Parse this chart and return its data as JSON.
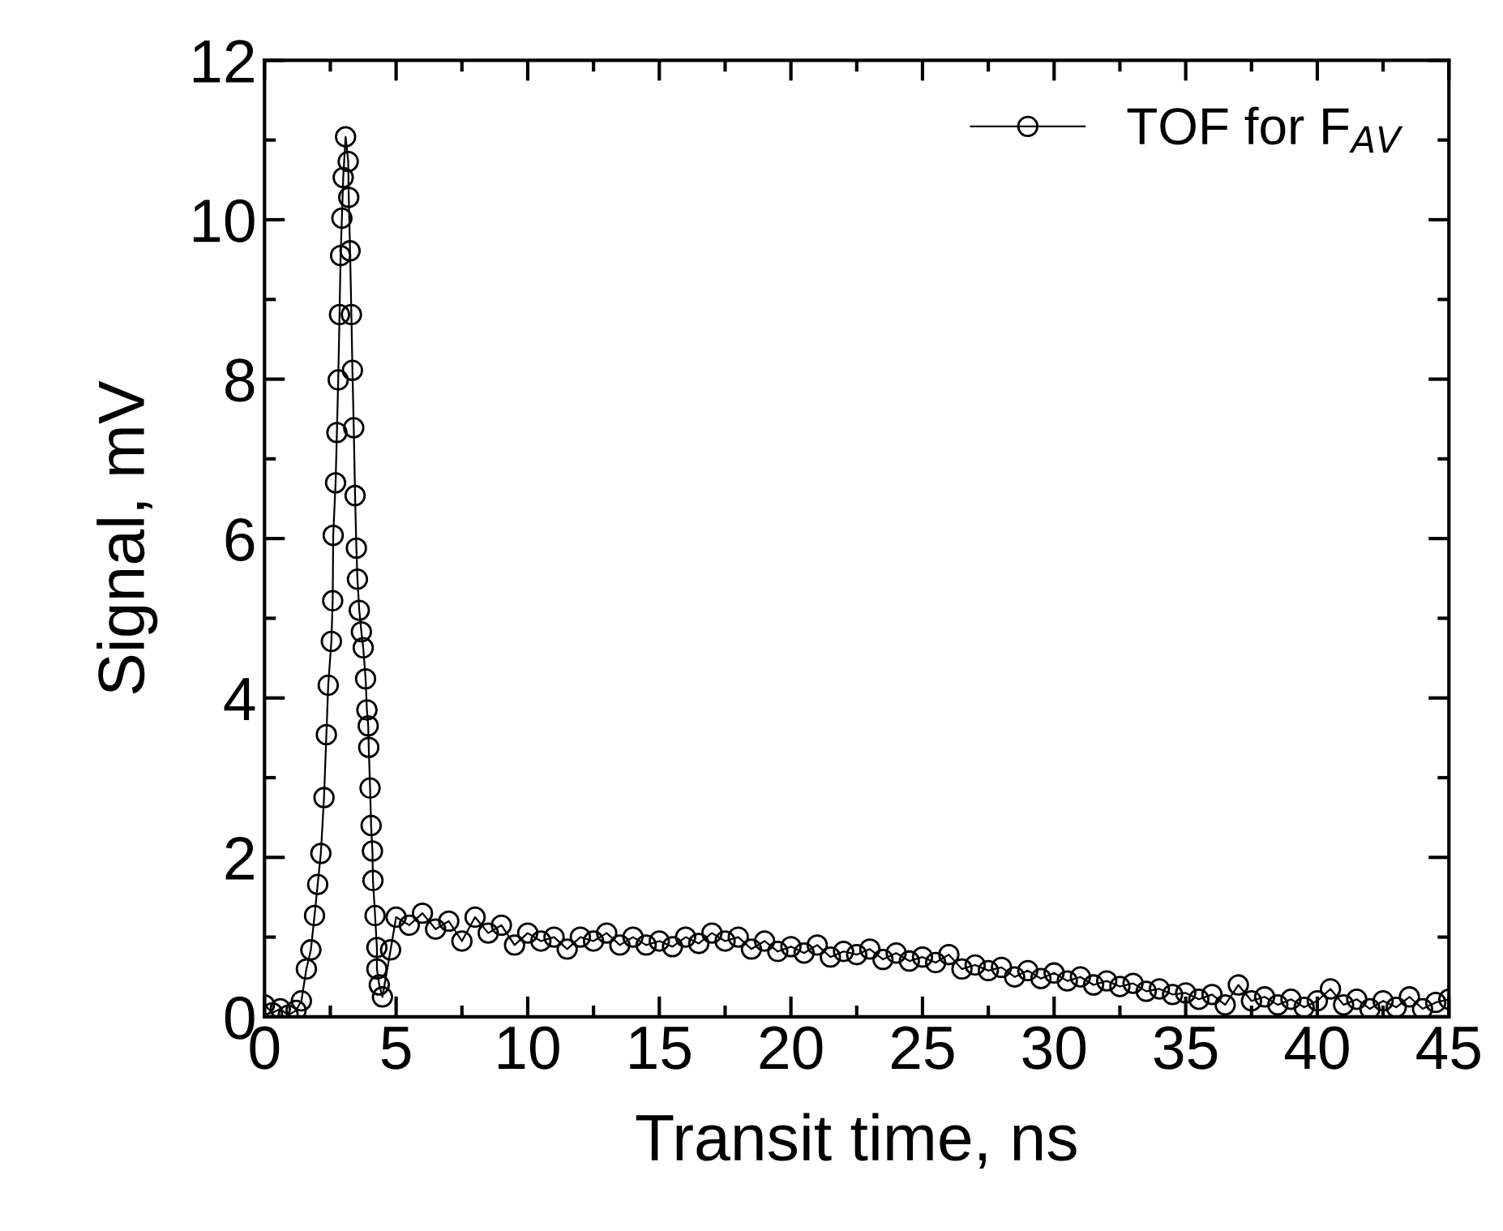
{
  "chart_data": {
    "type": "line",
    "xlabel": "Transit time, ns",
    "ylabel": "Signal, mV",
    "xlim": [
      0,
      45
    ],
    "xticks": [
      0,
      5,
      10,
      15,
      20,
      25,
      30,
      35,
      40,
      45
    ],
    "ylim": [
      0,
      12
    ],
    "yticks": [
      0,
      2,
      4,
      6,
      8,
      10,
      12
    ],
    "marker": "circle",
    "line_style": "solid",
    "legend": "top right",
    "grid": false,
    "series": [
      {
        "name": "TOF for F$_{AV}$",
        "color": "#000000",
        "x": [
          0.0,
          0.3,
          0.6,
          0.9,
          1.2,
          1.4,
          1.59,
          1.76,
          1.9,
          2.02,
          2.14,
          2.26,
          2.35,
          2.42,
          2.54,
          2.59,
          2.61,
          2.7,
          2.75,
          2.8,
          2.85,
          2.89,
          2.94,
          2.99,
          3.08,
          3.18,
          3.2,
          3.25,
          3.3,
          3.34,
          3.39,
          3.44,
          3.49,
          3.53,
          3.6,
          3.68,
          3.75,
          3.84,
          3.89,
          3.94,
          3.96,
          4.01,
          4.05,
          4.1,
          4.12,
          4.2,
          4.27,
          4.27,
          4.36,
          4.48,
          4.79,
          5.0,
          5.5,
          6.0,
          6.5,
          7.0,
          7.5,
          8.0,
          8.5,
          9.0,
          9.5,
          10.0,
          10.5,
          11.0,
          11.5,
          12.0,
          12.5,
          13.0,
          13.5,
          14.0,
          14.5,
          15.0,
          15.5,
          16.0,
          16.5,
          17.0,
          17.5,
          18.0,
          18.5,
          19.0,
          19.5,
          20.0,
          20.5,
          21.0,
          21.5,
          22.0,
          22.5,
          23.0,
          23.5,
          24.0,
          24.5,
          25.0,
          25.5,
          26.0,
          26.5,
          27.0,
          27.5,
          28.0,
          28.5,
          29.0,
          29.5,
          30.0,
          30.5,
          31.0,
          31.5,
          32.0,
          32.5,
          33.0,
          33.5,
          34.0,
          34.5,
          35.0,
          35.5,
          36.0,
          36.5,
          37.0,
          37.5,
          38.0,
          38.5,
          39.0,
          39.5,
          40.0,
          40.5,
          41.0,
          41.5,
          42.0,
          42.5,
          43.0,
          43.5,
          44.0,
          44.5,
          45.0
        ],
        "values": [
          0.15,
          0.05,
          0.1,
          0.02,
          0.08,
          0.2,
          0.6,
          0.84,
          1.27,
          1.66,
          2.05,
          2.75,
          3.54,
          4.16,
          4.71,
          5.22,
          6.04,
          6.7,
          7.33,
          7.99,
          8.81,
          9.55,
          10.02,
          10.53,
          11.04,
          10.73,
          10.28,
          9.61,
          8.81,
          8.11,
          7.39,
          6.54,
          5.88,
          5.49,
          5.1,
          4.83,
          4.63,
          4.24,
          3.85,
          3.65,
          3.38,
          2.87,
          2.4,
          2.08,
          1.71,
          1.27,
          0.87,
          0.6,
          0.4,
          0.25,
          0.84,
          1.25,
          1.15,
          1.3,
          1.1,
          1.2,
          0.95,
          1.25,
          1.05,
          1.15,
          0.9,
          1.05,
          0.95,
          1.0,
          0.85,
          1.0,
          0.95,
          1.05,
          0.9,
          1.0,
          0.9,
          0.95,
          0.88,
          1.0,
          0.92,
          1.05,
          0.95,
          1.0,
          0.85,
          0.95,
          0.82,
          0.88,
          0.8,
          0.9,
          0.75,
          0.82,
          0.78,
          0.85,
          0.72,
          0.8,
          0.7,
          0.75,
          0.68,
          0.78,
          0.6,
          0.65,
          0.58,
          0.62,
          0.5,
          0.58,
          0.48,
          0.55,
          0.45,
          0.5,
          0.4,
          0.45,
          0.38,
          0.42,
          0.32,
          0.35,
          0.28,
          0.3,
          0.22,
          0.28,
          0.15,
          0.4,
          0.2,
          0.25,
          0.15,
          0.22,
          0.12,
          0.2,
          0.35,
          0.15,
          0.22,
          0.1,
          0.2,
          0.12,
          0.25,
          0.1,
          0.18,
          0.22
        ]
      }
    ]
  }
}
